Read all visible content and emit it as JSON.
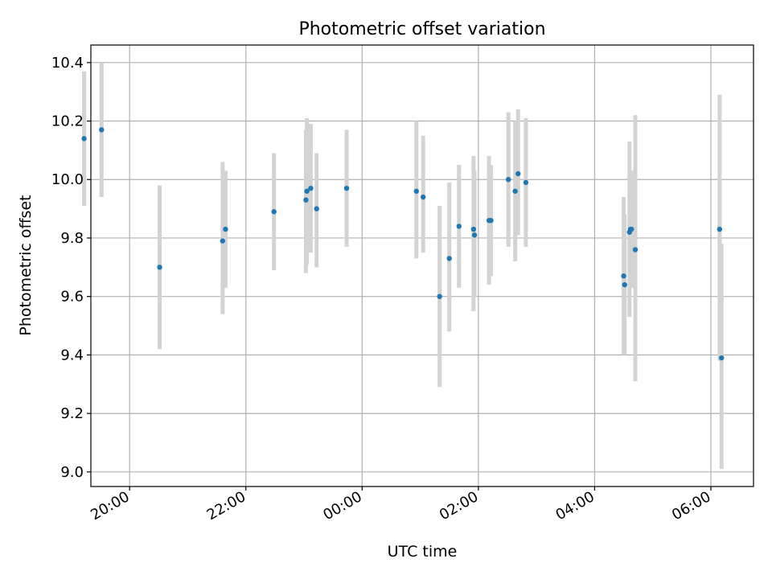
{
  "chart_data": {
    "type": "scatter",
    "title": "Photometric offset variation",
    "xlabel": "UTC time",
    "ylabel": "Photometric offset",
    "x_unit": "UTC time of day (hours, runs past midnight into next day)",
    "xlim": [
      "19:20",
      "06:44"
    ],
    "ylim": [
      8.95,
      10.46
    ],
    "x_ticks": [
      "20:00",
      "22:00",
      "00:00",
      "02:00",
      "04:00",
      "06:00"
    ],
    "y_ticks": [
      "9.0",
      "9.2",
      "9.4",
      "9.6",
      "9.8",
      "10.0",
      "10.2",
      "10.4"
    ],
    "grid": true,
    "colors": {
      "point": "#1f77b4",
      "errorbar": "#d3d3d3",
      "grid": "#b0b0b0"
    },
    "points": [
      {
        "x": "19:13",
        "y": 10.14,
        "lo": 9.91,
        "hi": 10.37
      },
      {
        "x": "19:31",
        "y": 10.17,
        "lo": 9.94,
        "hi": 10.4
      },
      {
        "x": "20:31",
        "y": 9.7,
        "lo": 9.42,
        "hi": 9.98
      },
      {
        "x": "21:36",
        "y": 9.79,
        "lo": 9.54,
        "hi": 10.06
      },
      {
        "x": "21:39",
        "y": 9.83,
        "lo": 9.63,
        "hi": 10.03
      },
      {
        "x": "22:29",
        "y": 9.89,
        "lo": 9.69,
        "hi": 10.09
      },
      {
        "x": "23:02",
        "y": 9.93,
        "lo": 9.68,
        "hi": 10.17
      },
      {
        "x": "23:03",
        "y": 9.96,
        "lo": 9.71,
        "hi": 10.21
      },
      {
        "x": "23:07",
        "y": 9.97,
        "lo": 9.75,
        "hi": 10.19
      },
      {
        "x": "23:13",
        "y": 9.9,
        "lo": 9.7,
        "hi": 10.09
      },
      {
        "x": "23:44",
        "y": 9.97,
        "lo": 9.77,
        "hi": 10.17
      },
      {
        "x": "00:56",
        "y": 9.96,
        "lo": 9.73,
        "hi": 10.2
      },
      {
        "x": "01:03",
        "y": 9.94,
        "lo": 9.75,
        "hi": 10.15
      },
      {
        "x": "01:20",
        "y": 9.6,
        "lo": 9.29,
        "hi": 9.91
      },
      {
        "x": "01:30",
        "y": 9.73,
        "lo": 9.48,
        "hi": 9.99
      },
      {
        "x": "01:40",
        "y": 9.84,
        "lo": 9.63,
        "hi": 10.05
      },
      {
        "x": "01:55",
        "y": 9.83,
        "lo": 9.55,
        "hi": 10.08
      },
      {
        "x": "01:56",
        "y": 9.81,
        "lo": 9.6,
        "hi": 10.03
      },
      {
        "x": "02:11",
        "y": 9.86,
        "lo": 9.64,
        "hi": 10.08
      },
      {
        "x": "02:13",
        "y": 9.86,
        "lo": 9.67,
        "hi": 10.05
      },
      {
        "x": "02:31",
        "y": 10.0,
        "lo": 9.77,
        "hi": 10.23
      },
      {
        "x": "02:38",
        "y": 9.96,
        "lo": 9.72,
        "hi": 10.2
      },
      {
        "x": "02:41",
        "y": 10.02,
        "lo": 9.81,
        "hi": 10.24
      },
      {
        "x": "02:49",
        "y": 9.99,
        "lo": 9.77,
        "hi": 10.21
      },
      {
        "x": "04:30",
        "y": 9.67,
        "lo": 9.4,
        "hi": 9.94
      },
      {
        "x": "04:31",
        "y": 9.64,
        "lo": 9.4,
        "hi": 9.88
      },
      {
        "x": "04:36",
        "y": 9.82,
        "lo": 9.53,
        "hi": 10.13
      },
      {
        "x": "04:37",
        "y": 9.83,
        "lo": 9.63,
        "hi": 10.03
      },
      {
        "x": "04:38",
        "y": 9.83,
        "lo": 9.63,
        "hi": 10.03
      },
      {
        "x": "04:42",
        "y": 9.76,
        "lo": 9.31,
        "hi": 10.22
      },
      {
        "x": "06:09",
        "y": 9.83,
        "lo": 9.38,
        "hi": 10.29
      },
      {
        "x": "06:11",
        "y": 9.39,
        "lo": 9.01,
        "hi": 9.78
      }
    ]
  }
}
